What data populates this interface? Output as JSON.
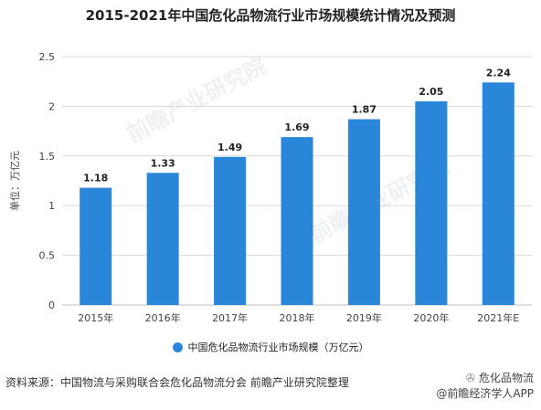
{
  "chart_data": {
    "type": "bar",
    "title": "2015-2021年中国危化品物流行业市场规模统计情况及预测",
    "categories": [
      "2015年",
      "2016年",
      "2017年",
      "2018年",
      "2019年",
      "2020年",
      "2021年E"
    ],
    "series": [
      {
        "name": "中国危化品物流行业市场规模（万亿元）",
        "values": [
          1.18,
          1.33,
          1.49,
          1.69,
          1.87,
          2.05,
          2.24
        ]
      }
    ],
    "data_labels": [
      "1.18",
      "1.33",
      "1.49",
      "1.69",
      "1.87",
      "2.05",
      "2.24"
    ],
    "ylabel": "单位：万亿元",
    "yticks": [
      "0",
      "0.5",
      "1",
      "1.5",
      "2",
      "2.5"
    ],
    "ylim": [
      0,
      2.5
    ],
    "grid": true,
    "legend_position": "bottom",
    "colors": {
      "bar": "#2a86d9",
      "grid": "#d9d9d9",
      "axis": "#bfbfbf"
    }
  },
  "source_text": "资料来源：中国物流与采购联合会危化品物流分会 前瞻产业研究院整理",
  "wechat": {
    "icon": "wechat-icon",
    "account": "危化品物流",
    "app": "@前瞻经济学人APP"
  },
  "watermark": "前瞻产业研究院"
}
